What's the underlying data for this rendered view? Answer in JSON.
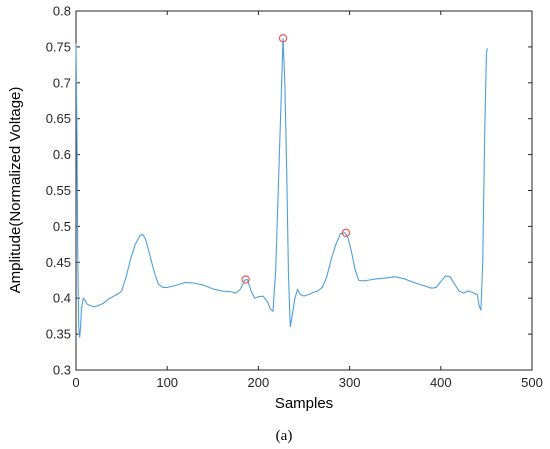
{
  "chart_data": {
    "type": "line",
    "title": "",
    "xlabel": "Samples",
    "ylabel": "Amplitude(Normalized Voltage)",
    "xlim": [
      0,
      500
    ],
    "ylim": [
      0.3,
      0.8
    ],
    "xticks": [
      0,
      100,
      200,
      300,
      400,
      500
    ],
    "yticks": [
      0.3,
      0.35,
      0.4,
      0.45,
      0.5,
      0.55,
      0.6,
      0.65,
      0.7,
      0.75,
      0.8
    ],
    "xtick_labels": [
      "0",
      "100",
      "200",
      "300",
      "400",
      "500"
    ],
    "ytick_labels": [
      "0.3",
      "0.35",
      "0.4",
      "0.45",
      "0.5",
      "0.55",
      "0.6",
      "0.65",
      "0.7",
      "0.75",
      "0.8"
    ],
    "grid": false,
    "series": [
      {
        "color": "#4d9fdc",
        "x": [
          0,
          1,
          2,
          3,
          4,
          5,
          6,
          8,
          10,
          12,
          15,
          20,
          25,
          30,
          35,
          40,
          45,
          50,
          55,
          60,
          65,
          70,
          73,
          76,
          80,
          85,
          90,
          95,
          100,
          110,
          120,
          130,
          140,
          150,
          160,
          170,
          175,
          180,
          185,
          188,
          192,
          196,
          200,
          205,
          210,
          213,
          216,
          219,
          222,
          225,
          227,
          229,
          231,
          233,
          235,
          237,
          240,
          243,
          246,
          250,
          255,
          260,
          265,
          270,
          275,
          280,
          285,
          290,
          295,
          298,
          302,
          306,
          310,
          315,
          320,
          330,
          340,
          350,
          360,
          370,
          380,
          385,
          390,
          395,
          400,
          405,
          410,
          415,
          420,
          425,
          430,
          435,
          440,
          442,
          444,
          446,
          448,
          450,
          451
        ],
        "y": [
          0.755,
          0.63,
          0.45,
          0.36,
          0.345,
          0.36,
          0.385,
          0.4,
          0.397,
          0.392,
          0.39,
          0.388,
          0.39,
          0.393,
          0.398,
          0.402,
          0.405,
          0.41,
          0.43,
          0.455,
          0.475,
          0.487,
          0.489,
          0.483,
          0.465,
          0.44,
          0.42,
          0.415,
          0.415,
          0.418,
          0.422,
          0.421,
          0.418,
          0.413,
          0.41,
          0.409,
          0.407,
          0.412,
          0.425,
          0.426,
          0.41,
          0.4,
          0.402,
          0.403,
          0.395,
          0.385,
          0.382,
          0.44,
          0.56,
          0.68,
          0.762,
          0.7,
          0.58,
          0.43,
          0.36,
          0.375,
          0.4,
          0.412,
          0.405,
          0.403,
          0.405,
          0.408,
          0.41,
          0.415,
          0.43,
          0.455,
          0.475,
          0.49,
          0.491,
          0.485,
          0.465,
          0.44,
          0.425,
          0.424,
          0.425,
          0.427,
          0.428,
          0.43,
          0.427,
          0.422,
          0.418,
          0.416,
          0.414,
          0.415,
          0.423,
          0.431,
          0.43,
          0.42,
          0.41,
          0.407,
          0.41,
          0.408,
          0.405,
          0.39,
          0.383,
          0.45,
          0.62,
          0.74,
          0.748
        ]
      }
    ],
    "markers": [
      {
        "x": 186,
        "y": 0.426,
        "color": "#e84d4d"
      },
      {
        "x": 227,
        "y": 0.762,
        "color": "#e84d4d"
      },
      {
        "x": 296,
        "y": 0.491,
        "color": "#e84d4d"
      }
    ],
    "caption": "(a)"
  }
}
